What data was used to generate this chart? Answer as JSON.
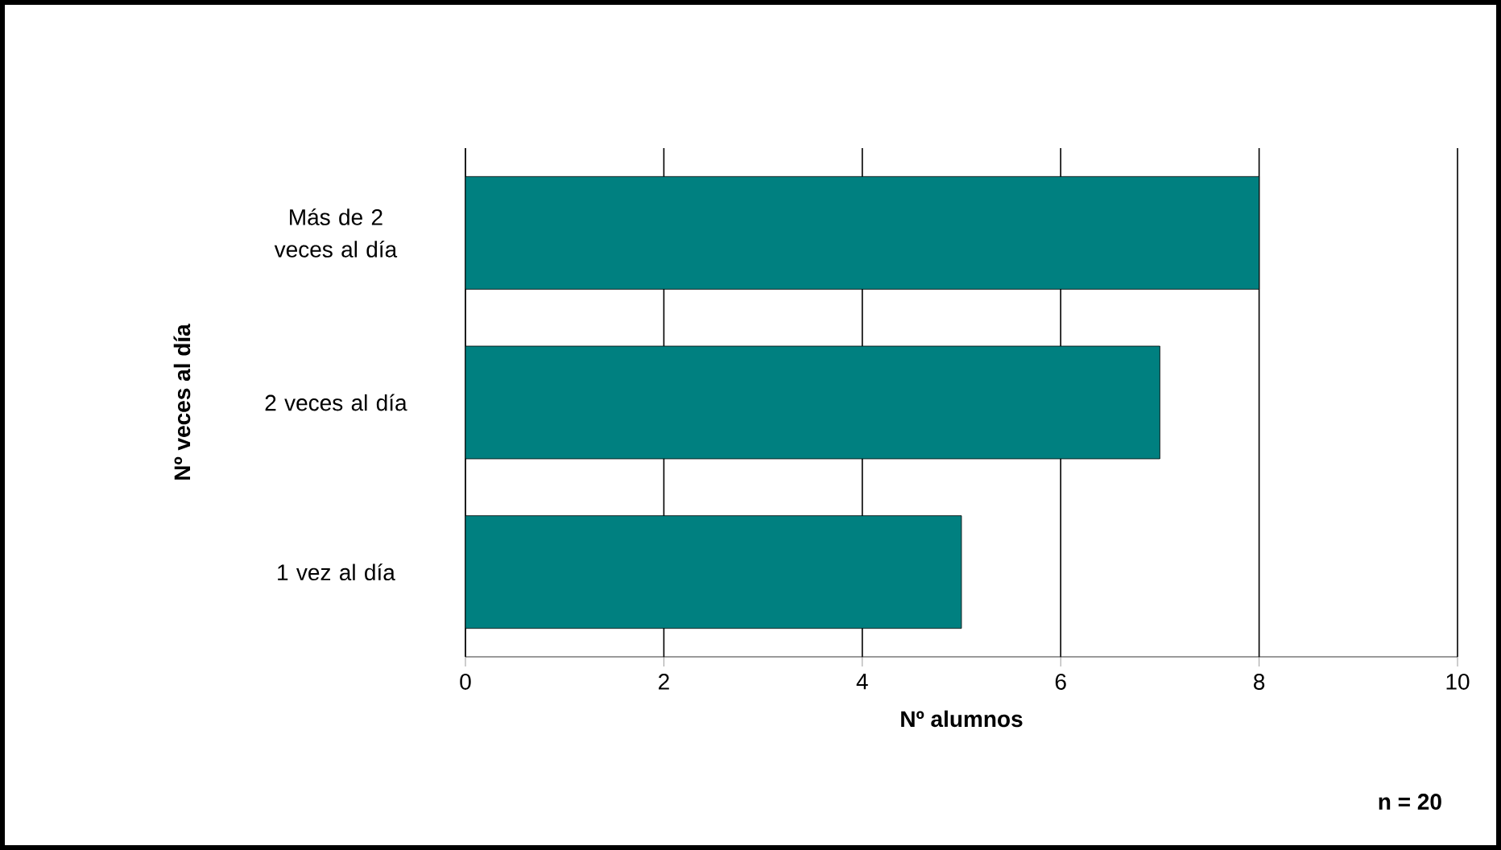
{
  "chart_data": {
    "type": "bar",
    "orientation": "horizontal",
    "categories": [
      "Más de 2 veces al día",
      "2 veces al día",
      "1 vez al día"
    ],
    "values": [
      8,
      7,
      5
    ],
    "color": "#008080",
    "xlabel": "Nº alumnos",
    "ylabel": "Nº veces al día",
    "xlim": [
      0,
      10
    ],
    "xticks": [
      0,
      2,
      4,
      6,
      8,
      10
    ],
    "grid": "x",
    "annotations": [
      "n = 20"
    ]
  }
}
